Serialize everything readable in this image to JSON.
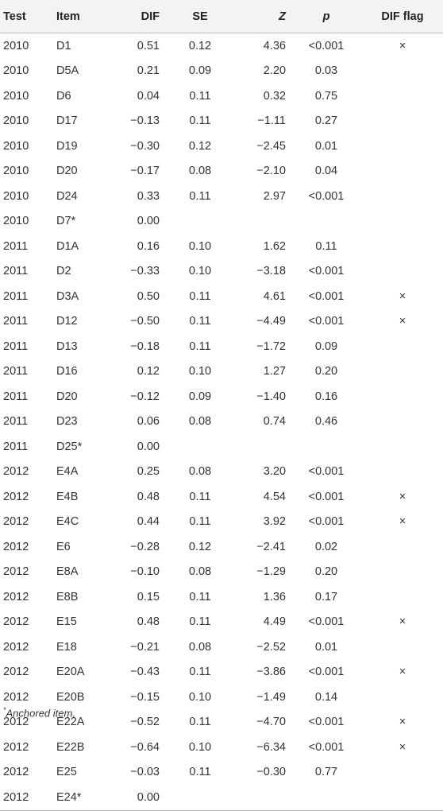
{
  "headers": [
    "Test",
    "Item",
    "DIF",
    "SE",
    "Z",
    "p",
    "DIF flag"
  ],
  "rows": [
    [
      "2010",
      "D1",
      "0.51",
      "0.12",
      "4.36",
      "<0.001",
      "×"
    ],
    [
      "2010",
      "D5A",
      "0.21",
      "0.09",
      "2.20",
      "0.03",
      ""
    ],
    [
      "2010",
      "D6",
      "0.04",
      "0.11",
      "0.32",
      "0.75",
      ""
    ],
    [
      "2010",
      "D17",
      "−0.13",
      "0.11",
      "−1.11",
      "0.27",
      ""
    ],
    [
      "2010",
      "D19",
      "−0.30",
      "0.12",
      "−2.45",
      "0.01",
      ""
    ],
    [
      "2010",
      "D20",
      "−0.17",
      "0.08",
      "−2.10",
      "0.04",
      ""
    ],
    [
      "2010",
      "D24",
      "0.33",
      "0.11",
      "2.97",
      "<0.001",
      ""
    ],
    [
      "2010",
      "D7*",
      "0.00",
      "",
      "",
      "",
      ""
    ],
    [
      "2011",
      "D1A",
      "0.16",
      "0.10",
      "1.62",
      "0.11",
      ""
    ],
    [
      "2011",
      "D2",
      "−0.33",
      "0.10",
      "−3.18",
      "<0.001",
      ""
    ],
    [
      "2011",
      "D3A",
      "0.50",
      "0.11",
      "4.61",
      "<0.001",
      "×"
    ],
    [
      "2011",
      "D12",
      "−0.50",
      "0.11",
      "−4.49",
      "<0.001",
      "×"
    ],
    [
      "2011",
      "D13",
      "−0.18",
      "0.11",
      "−1.72",
      "0.09",
      ""
    ],
    [
      "2011",
      "D16",
      "0.12",
      "0.10",
      "1.27",
      "0.20",
      ""
    ],
    [
      "2011",
      "D20",
      "−0.12",
      "0.09",
      "−1.40",
      "0.16",
      ""
    ],
    [
      "2011",
      "D23",
      "0.06",
      "0.08",
      "0.74",
      "0.46",
      ""
    ],
    [
      "2011",
      "D25*",
      "0.00",
      "",
      "",
      "",
      ""
    ],
    [
      "2012",
      "E4A",
      "0.25",
      "0.08",
      "3.20",
      "<0.001",
      ""
    ],
    [
      "2012",
      "E4B",
      "0.48",
      "0.11",
      "4.54",
      "<0.001",
      "×"
    ],
    [
      "2012",
      "E4C",
      "0.44",
      "0.11",
      "3.92",
      "<0.001",
      "×"
    ],
    [
      "2012",
      "E6",
      "−0.28",
      "0.12",
      "−2.41",
      "0.02",
      ""
    ],
    [
      "2012",
      "E8A",
      "−0.10",
      "0.08",
      "−1.29",
      "0.20",
      ""
    ],
    [
      "2012",
      "E8B",
      "0.15",
      "0.11",
      "1.36",
      "0.17",
      ""
    ],
    [
      "2012",
      "E15",
      "0.48",
      "0.11",
      "4.49",
      "<0.001",
      "×"
    ],
    [
      "2012",
      "E18",
      "−0.21",
      "0.08",
      "−2.52",
      "0.01",
      ""
    ],
    [
      "2012",
      "E20A",
      "−0.43",
      "0.11",
      "−3.86",
      "<0.001",
      "×"
    ],
    [
      "2012",
      "E20B",
      "−0.15",
      "0.10",
      "−1.49",
      "0.14",
      ""
    ],
    [
      "2012",
      "E22A",
      "−0.52",
      "0.11",
      "−4.70",
      "<0.001",
      "×"
    ],
    [
      "2012",
      "E22B",
      "−0.64",
      "0.10",
      "−6.34",
      "<0.001",
      "×"
    ],
    [
      "2012",
      "E25",
      "−0.03",
      "0.11",
      "−0.30",
      "0.77",
      ""
    ],
    [
      "2012",
      "E24*",
      "0.00",
      "",
      "",
      "",
      ""
    ]
  ],
  "footnote": {
    "mark": "*",
    "text": "Anchored item."
  }
}
